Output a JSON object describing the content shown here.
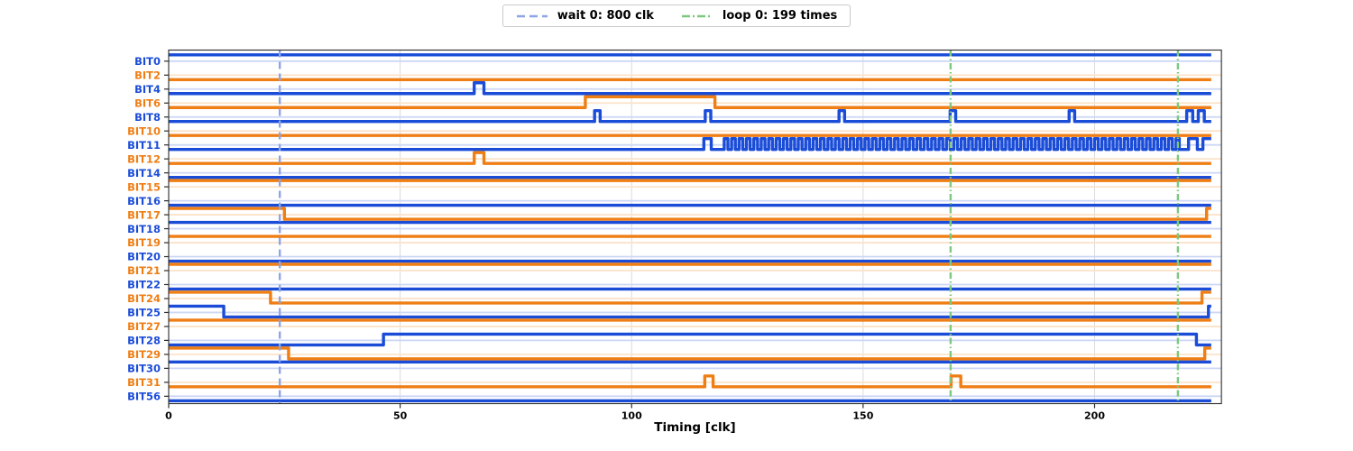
{
  "legend": {
    "items": [
      {
        "label": "wait 0: 800 clk",
        "color": "#8da4e6",
        "dash": "9 5"
      },
      {
        "label": "loop 0: 199 times",
        "color": "#7cc87f",
        "dash": "9 3 2 3"
      }
    ]
  },
  "axis": {
    "xlabel": "Timing [clk]",
    "ticks": [
      0,
      50,
      100,
      150,
      200
    ],
    "xmin": 0,
    "xmax": 227.4,
    "trace_end": 225.2
  },
  "markers": {
    "wait": [
      24.0
    ],
    "loop": [
      168.9,
      218.0
    ]
  },
  "colors": {
    "blue": "#1a4cd8",
    "orange": "#ef7e14",
    "blue_light": "#ccd7f5",
    "orange_light": "#fbe3c9",
    "wait": "#8da4e6",
    "loop": "#7cc87f",
    "grid": "#dcdcdc",
    "spine": "#2a2a2a",
    "text": "#000000"
  },
  "chart_data": {
    "type": "timing",
    "x_unit": "clk",
    "signals": [
      {
        "name": "BIT0",
        "color": "blue",
        "init": 1,
        "transitions": []
      },
      {
        "name": "BIT2",
        "color": "orange",
        "init": 0,
        "transitions": []
      },
      {
        "name": "BIT4",
        "color": "blue",
        "init": 0,
        "transitions": [
          66,
          68.1
        ]
      },
      {
        "name": "BIT6",
        "color": "orange",
        "init": 0,
        "transitions": [
          90,
          118
        ]
      },
      {
        "name": "BIT8",
        "color": "blue",
        "init": 0,
        "transitions": [
          92,
          93.2,
          115.9,
          117.1,
          144.8,
          146,
          168.8,
          170,
          194.5,
          195.7,
          219.9,
          221.2,
          222.4,
          223.7
        ]
      },
      {
        "name": "BIT10",
        "color": "orange",
        "init": 0,
        "transitions": []
      },
      {
        "name": "BIT11",
        "color": "blue",
        "init": 0,
        "transitions": [
          115.6,
          117.2
        ],
        "osc": {
          "start": 120,
          "end": 218.3,
          "half_period": 0.8
        },
        "transitions_after": [
          220.3,
          222.2,
          223.4
        ]
      },
      {
        "name": "BIT12",
        "color": "orange",
        "init": 0,
        "transitions": [
          66,
          68.1
        ]
      },
      {
        "name": "BIT14",
        "color": "blue",
        "init": 0,
        "transitions": []
      },
      {
        "name": "BIT15",
        "color": "orange",
        "init": 1,
        "transitions": []
      },
      {
        "name": "BIT16",
        "color": "blue",
        "init": 0,
        "transitions": []
      },
      {
        "name": "BIT17",
        "color": "orange",
        "init": 1,
        "transitions": [
          25.0,
          224.2
        ]
      },
      {
        "name": "BIT18",
        "color": "blue",
        "init": 1,
        "transitions": []
      },
      {
        "name": "BIT19",
        "color": "orange",
        "init": 1,
        "transitions": []
      },
      {
        "name": "BIT20",
        "color": "blue",
        "init": 0,
        "transitions": []
      },
      {
        "name": "BIT21",
        "color": "orange",
        "init": 1,
        "transitions": []
      },
      {
        "name": "BIT22",
        "color": "blue",
        "init": 0,
        "transitions": []
      },
      {
        "name": "BIT24",
        "color": "orange",
        "init": 1,
        "transitions": [
          22.0,
          223.2
        ]
      },
      {
        "name": "BIT25",
        "color": "blue",
        "init": 1,
        "transitions": [
          11.9,
          224.6
        ]
      },
      {
        "name": "BIT27",
        "color": "orange",
        "init": 1,
        "transitions": []
      },
      {
        "name": "BIT28",
        "color": "blue",
        "init": 0,
        "transitions": [
          46.4,
          222.0
        ]
      },
      {
        "name": "BIT29",
        "color": "orange",
        "init": 1,
        "transitions": [
          25.9,
          223.8
        ]
      },
      {
        "name": "BIT30",
        "color": "blue",
        "init": 1,
        "transitions": []
      },
      {
        "name": "BIT31",
        "color": "orange",
        "init": 0,
        "transitions": [
          115.8,
          117.6,
          169.0,
          171.1
        ]
      },
      {
        "name": "BIT56",
        "color": "blue",
        "init": 0,
        "transitions": []
      }
    ]
  }
}
